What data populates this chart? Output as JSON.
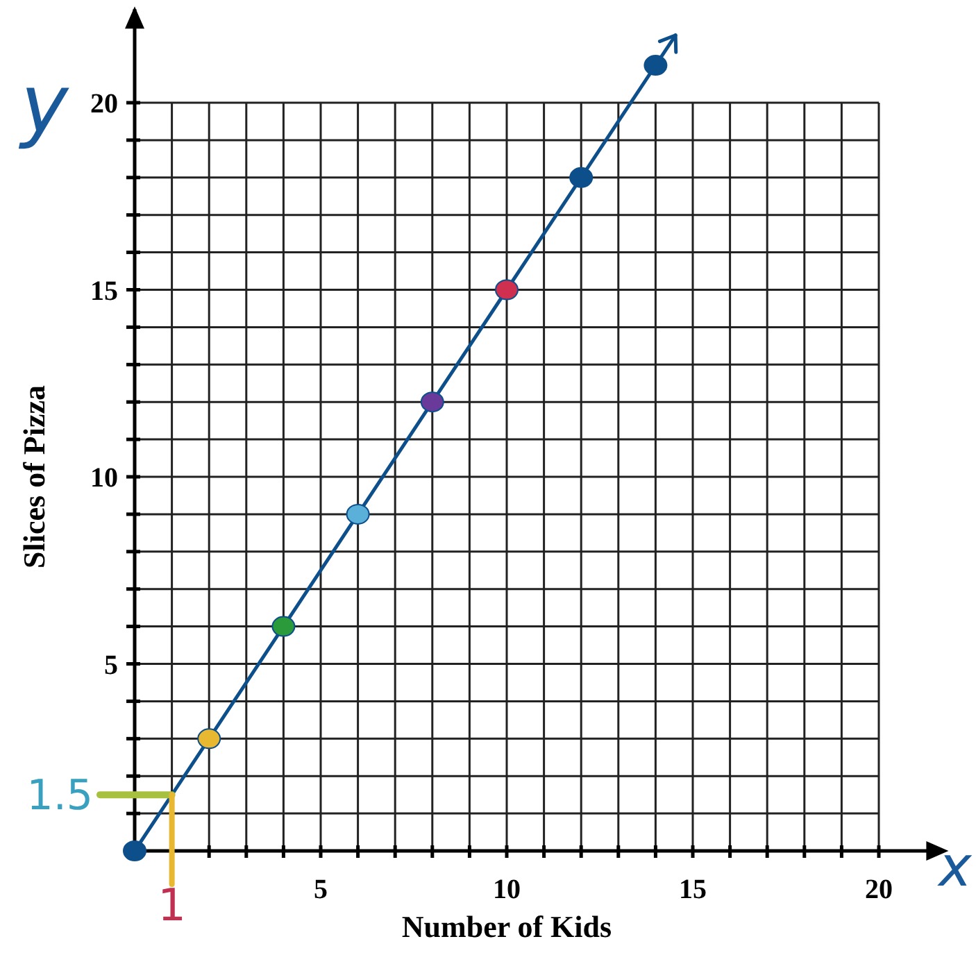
{
  "chart_data": {
    "type": "line",
    "xlabel": "Number of Kids",
    "ylabel": "Slices of Pizza",
    "x": [
      0,
      2,
      4,
      6,
      8,
      10,
      12,
      14
    ],
    "series": [
      {
        "color": "#0d4f8b",
        "colors": [
          "#0d4f8b",
          "#e8b830",
          "#2a9a3a",
          "#5ab0d8",
          "#6a3a9a",
          "#d03050",
          "#0d4f8b",
          "#0d4f8b"
        ],
        "values": [
          0,
          3,
          6,
          9,
          12,
          15,
          18,
          21
        ]
      }
    ],
    "xlim": [
      0,
      21.5
    ],
    "ylim": [
      0,
      22.5
    ],
    "xticks": [
      {
        "value": 1,
        "label": null
      },
      {
        "value": 2,
        "label": null
      },
      {
        "value": 3,
        "label": null
      },
      {
        "value": 4,
        "label": null
      },
      5,
      {
        "value": 6,
        "label": null
      },
      {
        "value": 7,
        "label": null
      },
      {
        "value": 8,
        "label": null
      },
      {
        "value": 9,
        "label": null
      },
      10,
      {
        "value": 11,
        "label": null
      },
      {
        "value": 12,
        "label": null
      },
      {
        "value": 13,
        "label": null
      },
      {
        "value": 14,
        "label": null
      },
      15,
      {
        "value": 16,
        "label": null
      },
      {
        "value": 17,
        "label": null
      },
      {
        "value": 18,
        "label": null
      },
      {
        "value": 19,
        "label": null
      },
      20
    ],
    "yticks": [
      {
        "value": 1,
        "label": null
      },
      {
        "value": 2,
        "label": null
      },
      {
        "value": 3,
        "label": null
      },
      {
        "value": 4,
        "label": null
      },
      5,
      {
        "value": 6,
        "label": null
      },
      {
        "value": 7,
        "label": null
      },
      {
        "value": 8,
        "label": null
      },
      {
        "value": 9,
        "label": null
      },
      10,
      {
        "value": 11,
        "label": null
      },
      {
        "value": 12,
        "label": null
      },
      {
        "value": 13,
        "label": null
      },
      {
        "value": 14,
        "label": null
      },
      15,
      {
        "value": 16,
        "label": null
      },
      {
        "value": 17,
        "label": null
      },
      {
        "value": 18,
        "label": null
      },
      {
        "value": 19,
        "label": null
      },
      20
    ],
    "grid": true,
    "marker": "circle",
    "annotations": [
      "y",
      "x",
      {
        "text": "1.5",
        "x": 1,
        "y": 1.5
      },
      {
        "text": "1",
        "x": 1,
        "y": 1.5
      }
    ]
  }
}
